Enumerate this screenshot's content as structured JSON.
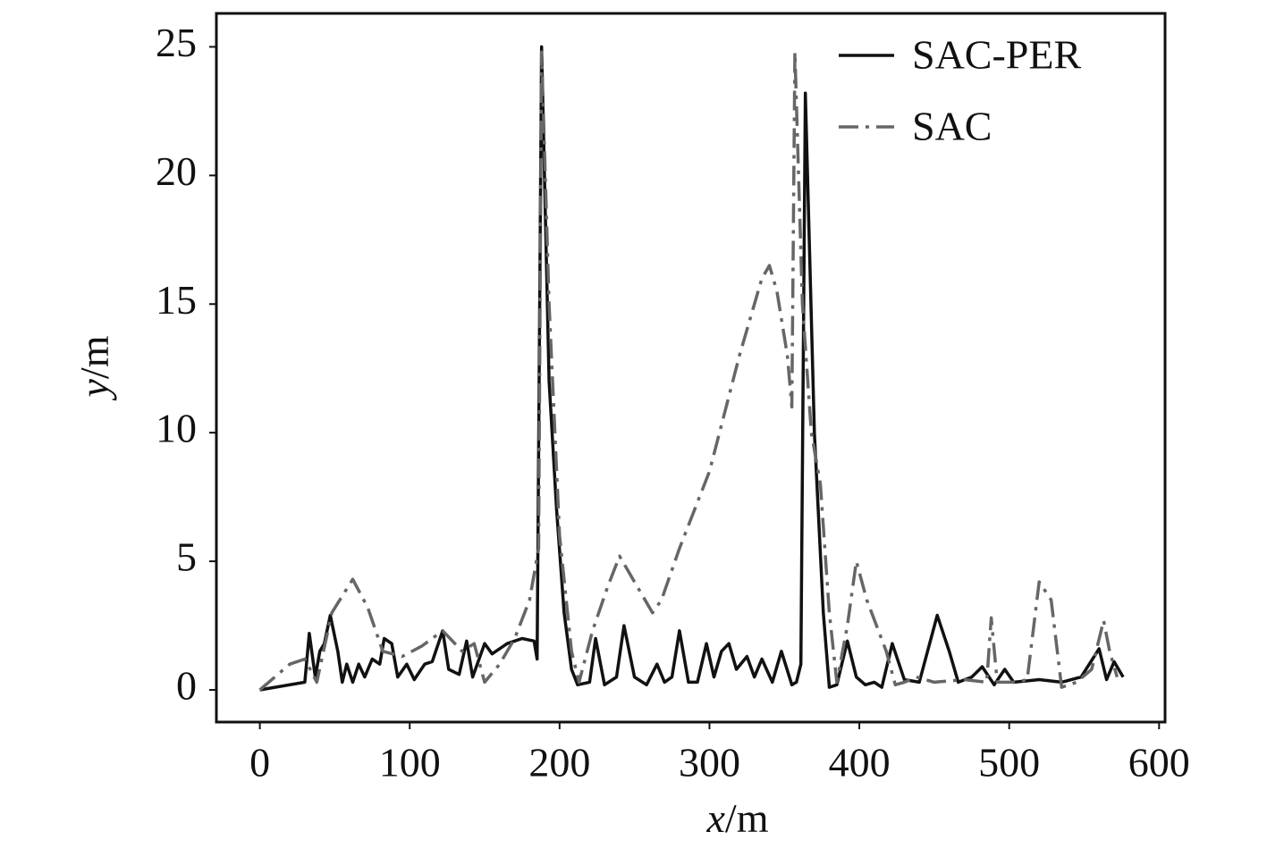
{
  "chart_data": {
    "type": "line",
    "xlabel": "x/m",
    "ylabel": "y/m",
    "xlim": [
      -29,
      604
    ],
    "ylim": [
      -1.25,
      26.3
    ],
    "xticks": [
      0,
      100,
      200,
      300,
      400,
      500,
      600
    ],
    "yticks": [
      0,
      5,
      10,
      15,
      20,
      25
    ],
    "legend": "upper right",
    "series": [
      {
        "name": "SAC-PER",
        "color": "#111111",
        "dash": "solid",
        "x": [
          0,
          30,
          33,
          37,
          40,
          43,
          47,
          52,
          55,
          58,
          62,
          66,
          70,
          75,
          80,
          83,
          88,
          92,
          98,
          103,
          110,
          115,
          122,
          126,
          133,
          138,
          142,
          150,
          155,
          165,
          175,
          183,
          185,
          188,
          193,
          198,
          203,
          208,
          212,
          220,
          224,
          230,
          238,
          243,
          250,
          258,
          265,
          270,
          275,
          280,
          286,
          292,
          298,
          303,
          308,
          313,
          318,
          325,
          330,
          335,
          342,
          348,
          355,
          358,
          361,
          364,
          370,
          376,
          380,
          385,
          392,
          398,
          404,
          410,
          415,
          422,
          430,
          440,
          452,
          460,
          466,
          475,
          482,
          490,
          497,
          503,
          520,
          535,
          548,
          560,
          565,
          570,
          576
        ],
        "values": [
          0,
          0.3,
          2.2,
          0.5,
          1.5,
          1.8,
          2.9,
          1.5,
          0.3,
          1.0,
          0.3,
          1.0,
          0.5,
          1.2,
          1.0,
          2.0,
          1.8,
          0.5,
          1.0,
          0.4,
          1.0,
          1.1,
          2.3,
          0.8,
          0.6,
          1.9,
          0.5,
          1.8,
          1.4,
          1.8,
          2.0,
          1.9,
          1.2,
          25,
          12,
          7,
          3,
          0.8,
          0.2,
          0.3,
          2.0,
          0.2,
          0.5,
          2.5,
          0.5,
          0.2,
          1.0,
          0.3,
          0.5,
          2.3,
          0.3,
          0.3,
          1.8,
          0.5,
          1.5,
          1.8,
          0.8,
          1.3,
          0.5,
          1.2,
          0.3,
          1.5,
          0.2,
          0.3,
          1.0,
          23.2,
          10,
          3,
          0.1,
          0.2,
          1.9,
          0.5,
          0.2,
          0.3,
          0.1,
          1.8,
          0.4,
          0.3,
          2.9,
          1.5,
          0.3,
          0.5,
          0.9,
          0.2,
          0.8,
          0.3,
          0.4,
          0.3,
          0.5,
          1.6,
          0.4,
          1.1,
          0.5
        ]
      },
      {
        "name": "SAC",
        "color": "#666666",
        "dash": "dashdot",
        "x": [
          0,
          20,
          30,
          38,
          48,
          62,
          72,
          82,
          95,
          108,
          122,
          135,
          143,
          150,
          160,
          170,
          180,
          186,
          188,
          193,
          200,
          208,
          213,
          222,
          232,
          240,
          250,
          262,
          268,
          280,
          300,
          320,
          335,
          340,
          345,
          352,
          355,
          357,
          362,
          368,
          374,
          380,
          385,
          392,
          398,
          405,
          418,
          424,
          430,
          438,
          450,
          470,
          485,
          488,
          492,
          505,
          512,
          520,
          528,
          535,
          545,
          555,
          563,
          567,
          572
        ],
        "values": [
          0,
          1.0,
          1.2,
          0.3,
          3.0,
          4.3,
          3.2,
          1.5,
          1.3,
          1.7,
          2.3,
          1.5,
          1.8,
          0.3,
          1.0,
          2.0,
          3.5,
          5.5,
          24.8,
          15,
          6,
          1.5,
          0.3,
          2.3,
          4.0,
          5.2,
          4.2,
          3.0,
          3.5,
          5.5,
          8.5,
          13,
          16,
          16.5,
          15.5,
          13,
          11,
          24.8,
          15,
          10,
          8,
          3,
          0.3,
          2.5,
          5.0,
          3.5,
          1.5,
          0.2,
          0.3,
          0.5,
          0.3,
          0.4,
          0.3,
          2.8,
          0.3,
          0.3,
          0.4,
          4.2,
          3.5,
          0.1,
          0.3,
          0.8,
          2.7,
          1.5,
          0.5
        ]
      }
    ]
  }
}
